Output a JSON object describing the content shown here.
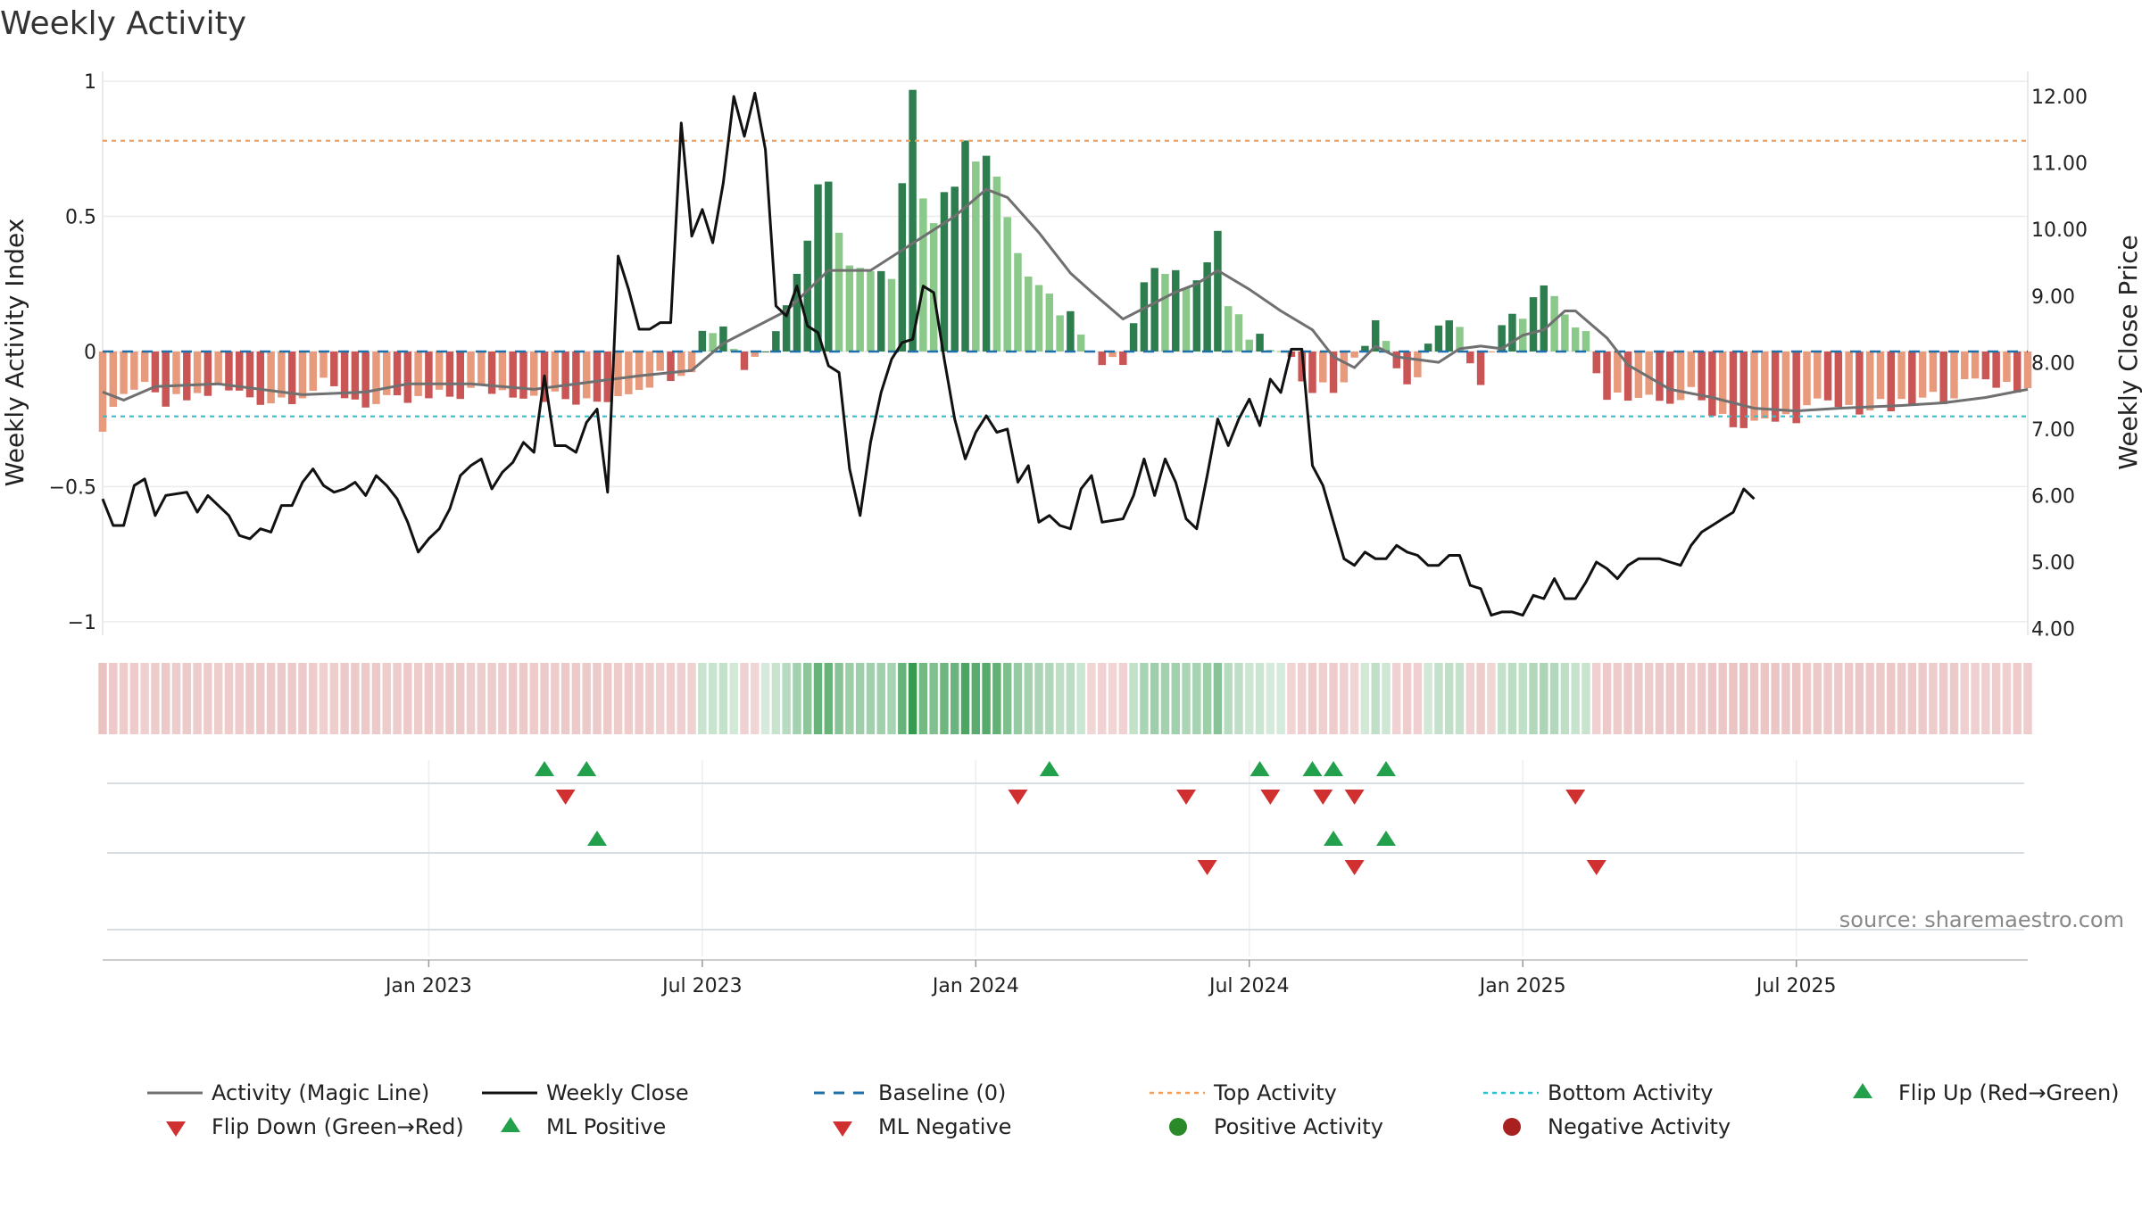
{
  "chart_data": {
    "type": "bar",
    "title": "Weekly Activity",
    "ylabel_left": "Weekly Activity Index",
    "ylabel_right": "Weekly Close Price",
    "source": "source: sharemaestro.com",
    "left_axis": {
      "ylim": [
        -1.05,
        1.03
      ],
      "ticks": [
        1,
        0.5,
        0,
        -0.5,
        -1
      ],
      "tick_labels": [
        "1",
        "0.5",
        "0",
        "−0.5",
        "−1"
      ]
    },
    "right_axis": {
      "ylim": [
        3.9,
        12.35
      ],
      "ticks": [
        12,
        11,
        10,
        9,
        8,
        7,
        6,
        5,
        4
      ],
      "tick_labels": [
        "12.00",
        "11.00",
        "10.00",
        "9.00",
        "8.00",
        "7.00",
        "6.00",
        "5.00",
        "4.00"
      ]
    },
    "x_axis": {
      "start_week": -31,
      "end_week": 152,
      "tick_weeks": [
        0,
        26,
        52,
        78,
        104,
        130
      ],
      "tick_labels": [
        "Jan 2023",
        "Jul 2023",
        "Jan 2024",
        "Jul 2024",
        "Jan 2025",
        "Jul 2025"
      ]
    },
    "reference_lines": {
      "baseline": 0,
      "top_activity": 0.78,
      "bottom_activity": -0.24
    },
    "activity_weekly": [
      {
        "w": -31,
        "v": -0.3
      },
      {
        "w": -28,
        "v": -0.12
      },
      {
        "w": -25,
        "v": -0.2
      },
      {
        "w": -20,
        "v": -0.14
      },
      {
        "w": -15,
        "v": -0.18
      },
      {
        "w": -10,
        "v": -0.13
      },
      {
        "w": -5,
        "v": -0.2
      },
      {
        "w": 0,
        "v": -0.18
      },
      {
        "w": 5,
        "v": -0.14
      },
      {
        "w": 10,
        "v": -0.15
      },
      {
        "w": 15,
        "v": -0.2
      },
      {
        "w": 20,
        "v": -0.12
      },
      {
        "w": 25,
        "v": -0.05
      },
      {
        "w": 26,
        "v": 0.07
      },
      {
        "w": 28,
        "v": 0.1
      },
      {
        "w": 30,
        "v": -0.06
      },
      {
        "w": 32,
        "v": 0.02
      },
      {
        "w": 35,
        "v": 0.28
      },
      {
        "w": 37,
        "v": 0.6
      },
      {
        "w": 38,
        "v": 0.66
      },
      {
        "w": 40,
        "v": 0.3
      },
      {
        "w": 42,
        "v": 0.33
      },
      {
        "w": 44,
        "v": 0.3
      },
      {
        "w": 46,
        "v": 0.97
      },
      {
        "w": 47,
        "v": 0.58
      },
      {
        "w": 48,
        "v": 0.48
      },
      {
        "w": 49,
        "v": 0.55
      },
      {
        "w": 50,
        "v": 0.58
      },
      {
        "w": 51,
        "v": 0.82
      },
      {
        "w": 52,
        "v": 0.7
      },
      {
        "w": 53,
        "v": 0.7
      },
      {
        "w": 54,
        "v": 0.62
      },
      {
        "w": 56,
        "v": 0.33
      },
      {
        "w": 58,
        "v": 0.28
      },
      {
        "w": 60,
        "v": 0.15
      },
      {
        "w": 62,
        "v": 0.09
      },
      {
        "w": 64,
        "v": -0.05
      },
      {
        "w": 66,
        "v": -0.04
      },
      {
        "w": 68,
        "v": 0.24
      },
      {
        "w": 70,
        "v": 0.31
      },
      {
        "w": 72,
        "v": 0.27
      },
      {
        "w": 74,
        "v": 0.33
      },
      {
        "w": 75,
        "v": 0.45
      },
      {
        "w": 76,
        "v": 0.17
      },
      {
        "w": 78,
        "v": 0.05
      },
      {
        "w": 80,
        "v": 0.02
      },
      {
        "w": 82,
        "v": -0.05
      },
      {
        "w": 84,
        "v": -0.12
      },
      {
        "w": 86,
        "v": -0.14
      },
      {
        "w": 88,
        "v": -0.05
      },
      {
        "w": 90,
        "v": 0.12
      },
      {
        "w": 92,
        "v": -0.08
      },
      {
        "w": 94,
        "v": -0.1
      },
      {
        "w": 96,
        "v": 0.12
      },
      {
        "w": 98,
        "v": 0.07
      },
      {
        "w": 100,
        "v": -0.12
      },
      {
        "w": 102,
        "v": 0.08
      },
      {
        "w": 104,
        "v": 0.15
      },
      {
        "w": 106,
        "v": 0.22
      },
      {
        "w": 108,
        "v": 0.13
      },
      {
        "w": 110,
        "v": 0.05
      },
      {
        "w": 112,
        "v": -0.15
      },
      {
        "w": 115,
        "v": -0.2
      },
      {
        "w": 120,
        "v": -0.16
      },
      {
        "w": 125,
        "v": -0.28
      },
      {
        "w": 128,
        "v": -0.26
      },
      {
        "w": 132,
        "v": -0.2
      },
      {
        "w": 136,
        "v": -0.21
      },
      {
        "w": 140,
        "v": -0.21
      },
      {
        "w": 144,
        "v": -0.16
      },
      {
        "w": 148,
        "v": -0.1
      },
      {
        "w": 152,
        "v": -0.14
      }
    ],
    "magic_line": [
      {
        "w": -31,
        "v": -0.15
      },
      {
        "w": -29,
        "v": -0.18
      },
      {
        "w": -26,
        "v": -0.13
      },
      {
        "w": -20,
        "v": -0.12
      },
      {
        "w": -12,
        "v": -0.16
      },
      {
        "w": -6,
        "v": -0.15
      },
      {
        "w": -2,
        "v": -0.12
      },
      {
        "w": 4,
        "v": -0.12
      },
      {
        "w": 10,
        "v": -0.14
      },
      {
        "w": 16,
        "v": -0.11
      },
      {
        "w": 20,
        "v": -0.09
      },
      {
        "w": 25,
        "v": -0.07
      },
      {
        "w": 28,
        "v": 0.03
      },
      {
        "w": 34,
        "v": 0.15
      },
      {
        "w": 38,
        "v": 0.3
      },
      {
        "w": 42,
        "v": 0.3
      },
      {
        "w": 46,
        "v": 0.4
      },
      {
        "w": 50,
        "v": 0.5
      },
      {
        "w": 53,
        "v": 0.6
      },
      {
        "w": 55,
        "v": 0.57
      },
      {
        "w": 58,
        "v": 0.44
      },
      {
        "w": 61,
        "v": 0.29
      },
      {
        "w": 63,
        "v": 0.22
      },
      {
        "w": 66,
        "v": 0.12
      },
      {
        "w": 69,
        "v": 0.18
      },
      {
        "w": 71,
        "v": 0.22
      },
      {
        "w": 73,
        "v": 0.25
      },
      {
        "w": 75,
        "v": 0.3
      },
      {
        "w": 78,
        "v": 0.23
      },
      {
        "w": 81,
        "v": 0.15
      },
      {
        "w": 84,
        "v": 0.08
      },
      {
        "w": 86,
        "v": -0.02
      },
      {
        "w": 88,
        "v": -0.06
      },
      {
        "w": 90,
        "v": 0.02
      },
      {
        "w": 92,
        "v": -0.02
      },
      {
        "w": 96,
        "v": -0.04
      },
      {
        "w": 98,
        "v": 0.01
      },
      {
        "w": 100,
        "v": 0.02
      },
      {
        "w": 102,
        "v": 0.01
      },
      {
        "w": 104,
        "v": 0.06
      },
      {
        "w": 106,
        "v": 0.08
      },
      {
        "w": 108,
        "v": 0.15
      },
      {
        "w": 109,
        "v": 0.15
      },
      {
        "w": 112,
        "v": 0.05
      },
      {
        "w": 114,
        "v": -0.05
      },
      {
        "w": 118,
        "v": -0.14
      },
      {
        "w": 122,
        "v": -0.17
      },
      {
        "w": 126,
        "v": -0.21
      },
      {
        "w": 130,
        "v": -0.22
      },
      {
        "w": 134,
        "v": -0.21
      },
      {
        "w": 140,
        "v": -0.2
      },
      {
        "w": 144,
        "v": -0.19
      },
      {
        "w": 148,
        "v": -0.17
      },
      {
        "w": 152,
        "v": -0.14
      }
    ],
    "weekly_close": [
      {
        "w": -31,
        "v": 5.95
      },
      {
        "w": -30,
        "v": 5.55
      },
      {
        "w": -29,
        "v": 5.55
      },
      {
        "w": -28,
        "v": 6.15
      },
      {
        "w": -27,
        "v": 6.25
      },
      {
        "w": -26,
        "v": 5.7
      },
      {
        "w": -25,
        "v": 6.0
      },
      {
        "w": -23,
        "v": 6.05
      },
      {
        "w": -22,
        "v": 5.75
      },
      {
        "w": -21,
        "v": 6.0
      },
      {
        "w": -19,
        "v": 5.7
      },
      {
        "w": -18,
        "v": 5.4
      },
      {
        "w": -17,
        "v": 5.35
      },
      {
        "w": -16,
        "v": 5.5
      },
      {
        "w": -15,
        "v": 5.45
      },
      {
        "w": -14,
        "v": 5.85
      },
      {
        "w": -13,
        "v": 5.85
      },
      {
        "w": -12,
        "v": 6.2
      },
      {
        "w": -11,
        "v": 6.4
      },
      {
        "w": -10,
        "v": 6.15
      },
      {
        "w": -9,
        "v": 6.05
      },
      {
        "w": -8,
        "v": 6.1
      },
      {
        "w": -7,
        "v": 6.2
      },
      {
        "w": -6,
        "v": 6.0
      },
      {
        "w": -5,
        "v": 6.3
      },
      {
        "w": -4,
        "v": 6.15
      },
      {
        "w": -3,
        "v": 5.95
      },
      {
        "w": -2,
        "v": 5.6
      },
      {
        "w": -1,
        "v": 5.15
      },
      {
        "w": 0,
        "v": 5.35
      },
      {
        "w": 1,
        "v": 5.5
      },
      {
        "w": 2,
        "v": 5.8
      },
      {
        "w": 3,
        "v": 6.3
      },
      {
        "w": 4,
        "v": 6.45
      },
      {
        "w": 5,
        "v": 6.55
      },
      {
        "w": 6,
        "v": 6.1
      },
      {
        "w": 7,
        "v": 6.35
      },
      {
        "w": 8,
        "v": 6.5
      },
      {
        "w": 9,
        "v": 6.8
      },
      {
        "w": 10,
        "v": 6.65
      },
      {
        "w": 11,
        "v": 7.8
      },
      {
        "w": 12,
        "v": 6.75
      },
      {
        "w": 13,
        "v": 6.75
      },
      {
        "w": 14,
        "v": 6.65
      },
      {
        "w": 15,
        "v": 7.1
      },
      {
        "w": 16,
        "v": 7.3
      },
      {
        "w": 17,
        "v": 6.05
      },
      {
        "w": 18,
        "v": 9.6
      },
      {
        "w": 19,
        "v": 9.1
      },
      {
        "w": 20,
        "v": 8.5
      },
      {
        "w": 21,
        "v": 8.5
      },
      {
        "w": 22,
        "v": 8.6
      },
      {
        "w": 23,
        "v": 8.6
      },
      {
        "w": 24,
        "v": 11.6
      },
      {
        "w": 25,
        "v": 9.9
      },
      {
        "w": 26,
        "v": 10.3
      },
      {
        "w": 27,
        "v": 9.8
      },
      {
        "w": 28,
        "v": 10.7
      },
      {
        "w": 29,
        "v": 12.0
      },
      {
        "w": 30,
        "v": 11.4
      },
      {
        "w": 31,
        "v": 12.05
      },
      {
        "w": 32,
        "v": 11.2
      },
      {
        "w": 33,
        "v": 8.85
      },
      {
        "w": 34,
        "v": 8.7
      },
      {
        "w": 35,
        "v": 9.15
      },
      {
        "w": 36,
        "v": 8.55
      },
      {
        "w": 37,
        "v": 8.45
      },
      {
        "w": 38,
        "v": 7.95
      },
      {
        "w": 39,
        "v": 7.85
      },
      {
        "w": 40,
        "v": 6.4
      },
      {
        "w": 41,
        "v": 5.7
      },
      {
        "w": 42,
        "v": 6.8
      },
      {
        "w": 43,
        "v": 7.55
      },
      {
        "w": 44,
        "v": 8.05
      },
      {
        "w": 45,
        "v": 8.3
      },
      {
        "w": 46,
        "v": 8.35
      },
      {
        "w": 47,
        "v": 9.15
      },
      {
        "w": 48,
        "v": 9.05
      },
      {
        "w": 49,
        "v": 8.05
      },
      {
        "w": 50,
        "v": 7.15
      },
      {
        "w": 51,
        "v": 6.55
      },
      {
        "w": 52,
        "v": 6.95
      },
      {
        "w": 53,
        "v": 7.2
      },
      {
        "w": 54,
        "v": 6.95
      },
      {
        "w": 55,
        "v": 7.0
      },
      {
        "w": 56,
        "v": 6.2
      },
      {
        "w": 57,
        "v": 6.45
      },
      {
        "w": 58,
        "v": 5.6
      },
      {
        "w": 59,
        "v": 5.7
      },
      {
        "w": 60,
        "v": 5.55
      },
      {
        "w": 61,
        "v": 5.5
      },
      {
        "w": 62,
        "v": 6.1
      },
      {
        "w": 63,
        "v": 6.3
      },
      {
        "w": 64,
        "v": 5.6
      },
      {
        "w": 66,
        "v": 5.65
      },
      {
        "w": 67,
        "v": 6.0
      },
      {
        "w": 68,
        "v": 6.55
      },
      {
        "w": 69,
        "v": 6.0
      },
      {
        "w": 70,
        "v": 6.55
      },
      {
        "w": 71,
        "v": 6.2
      },
      {
        "w": 72,
        "v": 5.65
      },
      {
        "w": 73,
        "v": 5.5
      },
      {
        "w": 74,
        "v": 6.3
      },
      {
        "w": 75,
        "v": 7.15
      },
      {
        "w": 76,
        "v": 6.75
      },
      {
        "w": 77,
        "v": 7.15
      },
      {
        "w": 78,
        "v": 7.45
      },
      {
        "w": 79,
        "v": 7.05
      },
      {
        "w": 80,
        "v": 7.75
      },
      {
        "w": 81,
        "v": 7.55
      },
      {
        "w": 82,
        "v": 8.2
      },
      {
        "w": 83,
        "v": 8.2
      },
      {
        "w": 84,
        "v": 6.45
      },
      {
        "w": 85,
        "v": 6.15
      },
      {
        "w": 86,
        "v": 5.6
      },
      {
        "w": 87,
        "v": 5.05
      },
      {
        "w": 88,
        "v": 4.95
      },
      {
        "w": 89,
        "v": 5.15
      },
      {
        "w": 90,
        "v": 5.05
      },
      {
        "w": 91,
        "v": 5.05
      },
      {
        "w": 92,
        "v": 5.25
      },
      {
        "w": 93,
        "v": 5.15
      },
      {
        "w": 94,
        "v": 5.1
      },
      {
        "w": 95,
        "v": 4.95
      },
      {
        "w": 96,
        "v": 4.95
      },
      {
        "w": 97,
        "v": 5.1
      },
      {
        "w": 98,
        "v": 5.1
      },
      {
        "w": 99,
        "v": 4.65
      },
      {
        "w": 100,
        "v": 4.6
      },
      {
        "w": 101,
        "v": 4.2
      },
      {
        "w": 102,
        "v": 4.25
      },
      {
        "w": 103,
        "v": 4.25
      },
      {
        "w": 104,
        "v": 4.2
      },
      {
        "w": 105,
        "v": 4.5
      },
      {
        "w": 106,
        "v": 4.45
      },
      {
        "w": 107,
        "v": 4.75
      },
      {
        "w": 108,
        "v": 4.45
      },
      {
        "w": 109,
        "v": 4.45
      },
      {
        "w": 110,
        "v": 4.7
      },
      {
        "w": 111,
        "v": 5.0
      },
      {
        "w": 112,
        "v": 4.9
      },
      {
        "w": 113,
        "v": 4.75
      },
      {
        "w": 114,
        "v": 4.95
      },
      {
        "w": 115,
        "v": 5.05
      },
      {
        "w": 116,
        "v": 5.05
      },
      {
        "w": 117,
        "v": 5.05
      },
      {
        "w": 118,
        "v": 5.0
      },
      {
        "w": 119,
        "v": 4.95
      },
      {
        "w": 120,
        "v": 5.25
      },
      {
        "w": 121,
        "v": 5.45
      },
      {
        "w": 122,
        "v": 5.55
      },
      {
        "w": 123,
        "v": 5.65
      },
      {
        "w": 124,
        "v": 5.75
      },
      {
        "w": 125,
        "v": 6.1
      },
      {
        "w": 126,
        "v": 5.95
      }
    ],
    "flip_up": [
      11,
      15,
      59,
      79,
      84,
      86,
      91
    ],
    "flip_down": [
      13,
      56,
      72,
      80,
      85,
      88,
      109
    ],
    "ml_positive": [
      16,
      86,
      91
    ],
    "ml_negative": [
      74,
      88,
      111
    ],
    "legend": [
      {
        "label": "Activity (Magic Line)",
        "key": "magic"
      },
      {
        "label": "Weekly Close",
        "key": "close"
      },
      {
        "label": "Baseline (0)",
        "key": "baseline"
      },
      {
        "label": "Top Activity",
        "key": "top"
      },
      {
        "label": "Bottom Activity",
        "key": "bottom"
      },
      {
        "label": "Flip Up (Red→Green)",
        "key": "flipup"
      },
      {
        "label": "Flip Down (Green→Red)",
        "key": "flipdown"
      },
      {
        "label": "ML Positive",
        "key": "mlpos"
      },
      {
        "label": "ML Negative",
        "key": "mlneg"
      },
      {
        "label": "Positive Activity",
        "key": "posact"
      },
      {
        "label": "Negative Activity",
        "key": "negact"
      }
    ],
    "colors": {
      "pos_dark": "#2e7d4f",
      "pos_light": "#8bc98a",
      "neg_dark": "#c95555",
      "neg_light": "#e89a7d",
      "magic": "#707070",
      "close": "#111111",
      "baseline": "#1f6fa8",
      "top": "#f0a060",
      "bottom": "#30c0d0",
      "flip_up": "#22a04b",
      "flip_down": "#d03030",
      "pos_dot": "#2a8a2a",
      "neg_dot": "#a82020"
    }
  }
}
